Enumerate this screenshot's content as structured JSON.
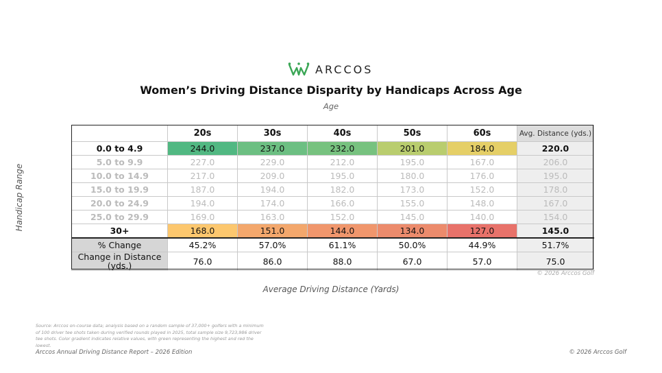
{
  "brand": {
    "name": "ARCCOS",
    "accent": "#3aa655"
  },
  "header": {
    "title": "Women’s Driving Distance Disparity by Handicaps Across Age",
    "subtitle": "Age"
  },
  "axes": {
    "ylabel": "Handicap Range",
    "xlabel": "Average Driving Distance (Yards)"
  },
  "chart_data": {
    "type": "table",
    "title": "Women’s Driving Distance Disparity by Handicaps Across Age",
    "columns": [
      "20s",
      "30s",
      "40s",
      "50s",
      "60s",
      "Avg. Distance (yds.)"
    ],
    "rows": [
      {
        "label": "0.0 to 4.9",
        "values": [
          "244.0",
          "237.0",
          "232.0",
          "201.0",
          "184.0"
        ],
        "avg": "220.0",
        "highlight": true,
        "colors": [
          "#51b882",
          "#6cbf82",
          "#77c27f",
          "#b9cd6e",
          "#e5cf67"
        ]
      },
      {
        "label": "5.0 to 9.9",
        "values": [
          "227.0",
          "229.0",
          "212.0",
          "195.0",
          "167.0"
        ],
        "avg": "206.0",
        "highlight": false
      },
      {
        "label": "10.0 to 14.9",
        "values": [
          "217.0",
          "209.0",
          "195.0",
          "180.0",
          "176.0"
        ],
        "avg": "195.0",
        "highlight": false
      },
      {
        "label": "15.0 to 19.9",
        "values": [
          "187.0",
          "194.0",
          "182.0",
          "173.0",
          "152.0"
        ],
        "avg": "178.0",
        "highlight": false
      },
      {
        "label": "20.0 to 24.9",
        "values": [
          "194.0",
          "174.0",
          "166.0",
          "155.0",
          "148.0"
        ],
        "avg": "167.0",
        "highlight": false
      },
      {
        "label": "25.0 to 29.9",
        "values": [
          "169.0",
          "163.0",
          "152.0",
          "145.0",
          "140.0"
        ],
        "avg": "154.0",
        "highlight": false
      },
      {
        "label": "30+",
        "values": [
          "168.0",
          "151.0",
          "144.0",
          "134.0",
          "127.0"
        ],
        "avg": "145.0",
        "highlight": true,
        "colors": [
          "#fcc76e",
          "#f3a76c",
          "#f0966c",
          "#ec8b6c",
          "#e8726a"
        ]
      }
    ],
    "stats": [
      {
        "label": "% Change",
        "values": [
          "45.2%",
          "57.0%",
          "61.1%",
          "50.0%",
          "44.9%",
          "51.7%"
        ]
      },
      {
        "label": "Change in Distance (yds.)",
        "values": [
          "76.0",
          "86.0",
          "88.0",
          "67.0",
          "57.0",
          "75.0"
        ]
      }
    ]
  },
  "notes": {
    "copyright_table": "© 2026 Arccos Golf",
    "source": "Source: Arccos on-course data; analysis based on a random sample of 37,000+ golfers with a minimum of 100 driver tee shots taken during verified rounds played in 2025, total sample size 9,723,986 driver tee shots. Color gradient indicates relative values, with green representing the highest and red the lowest.",
    "footer_left": "Arccos Annual Driving Distance Report – 2026 Edition",
    "footer_right": "© 2026 Arccos Golf"
  }
}
